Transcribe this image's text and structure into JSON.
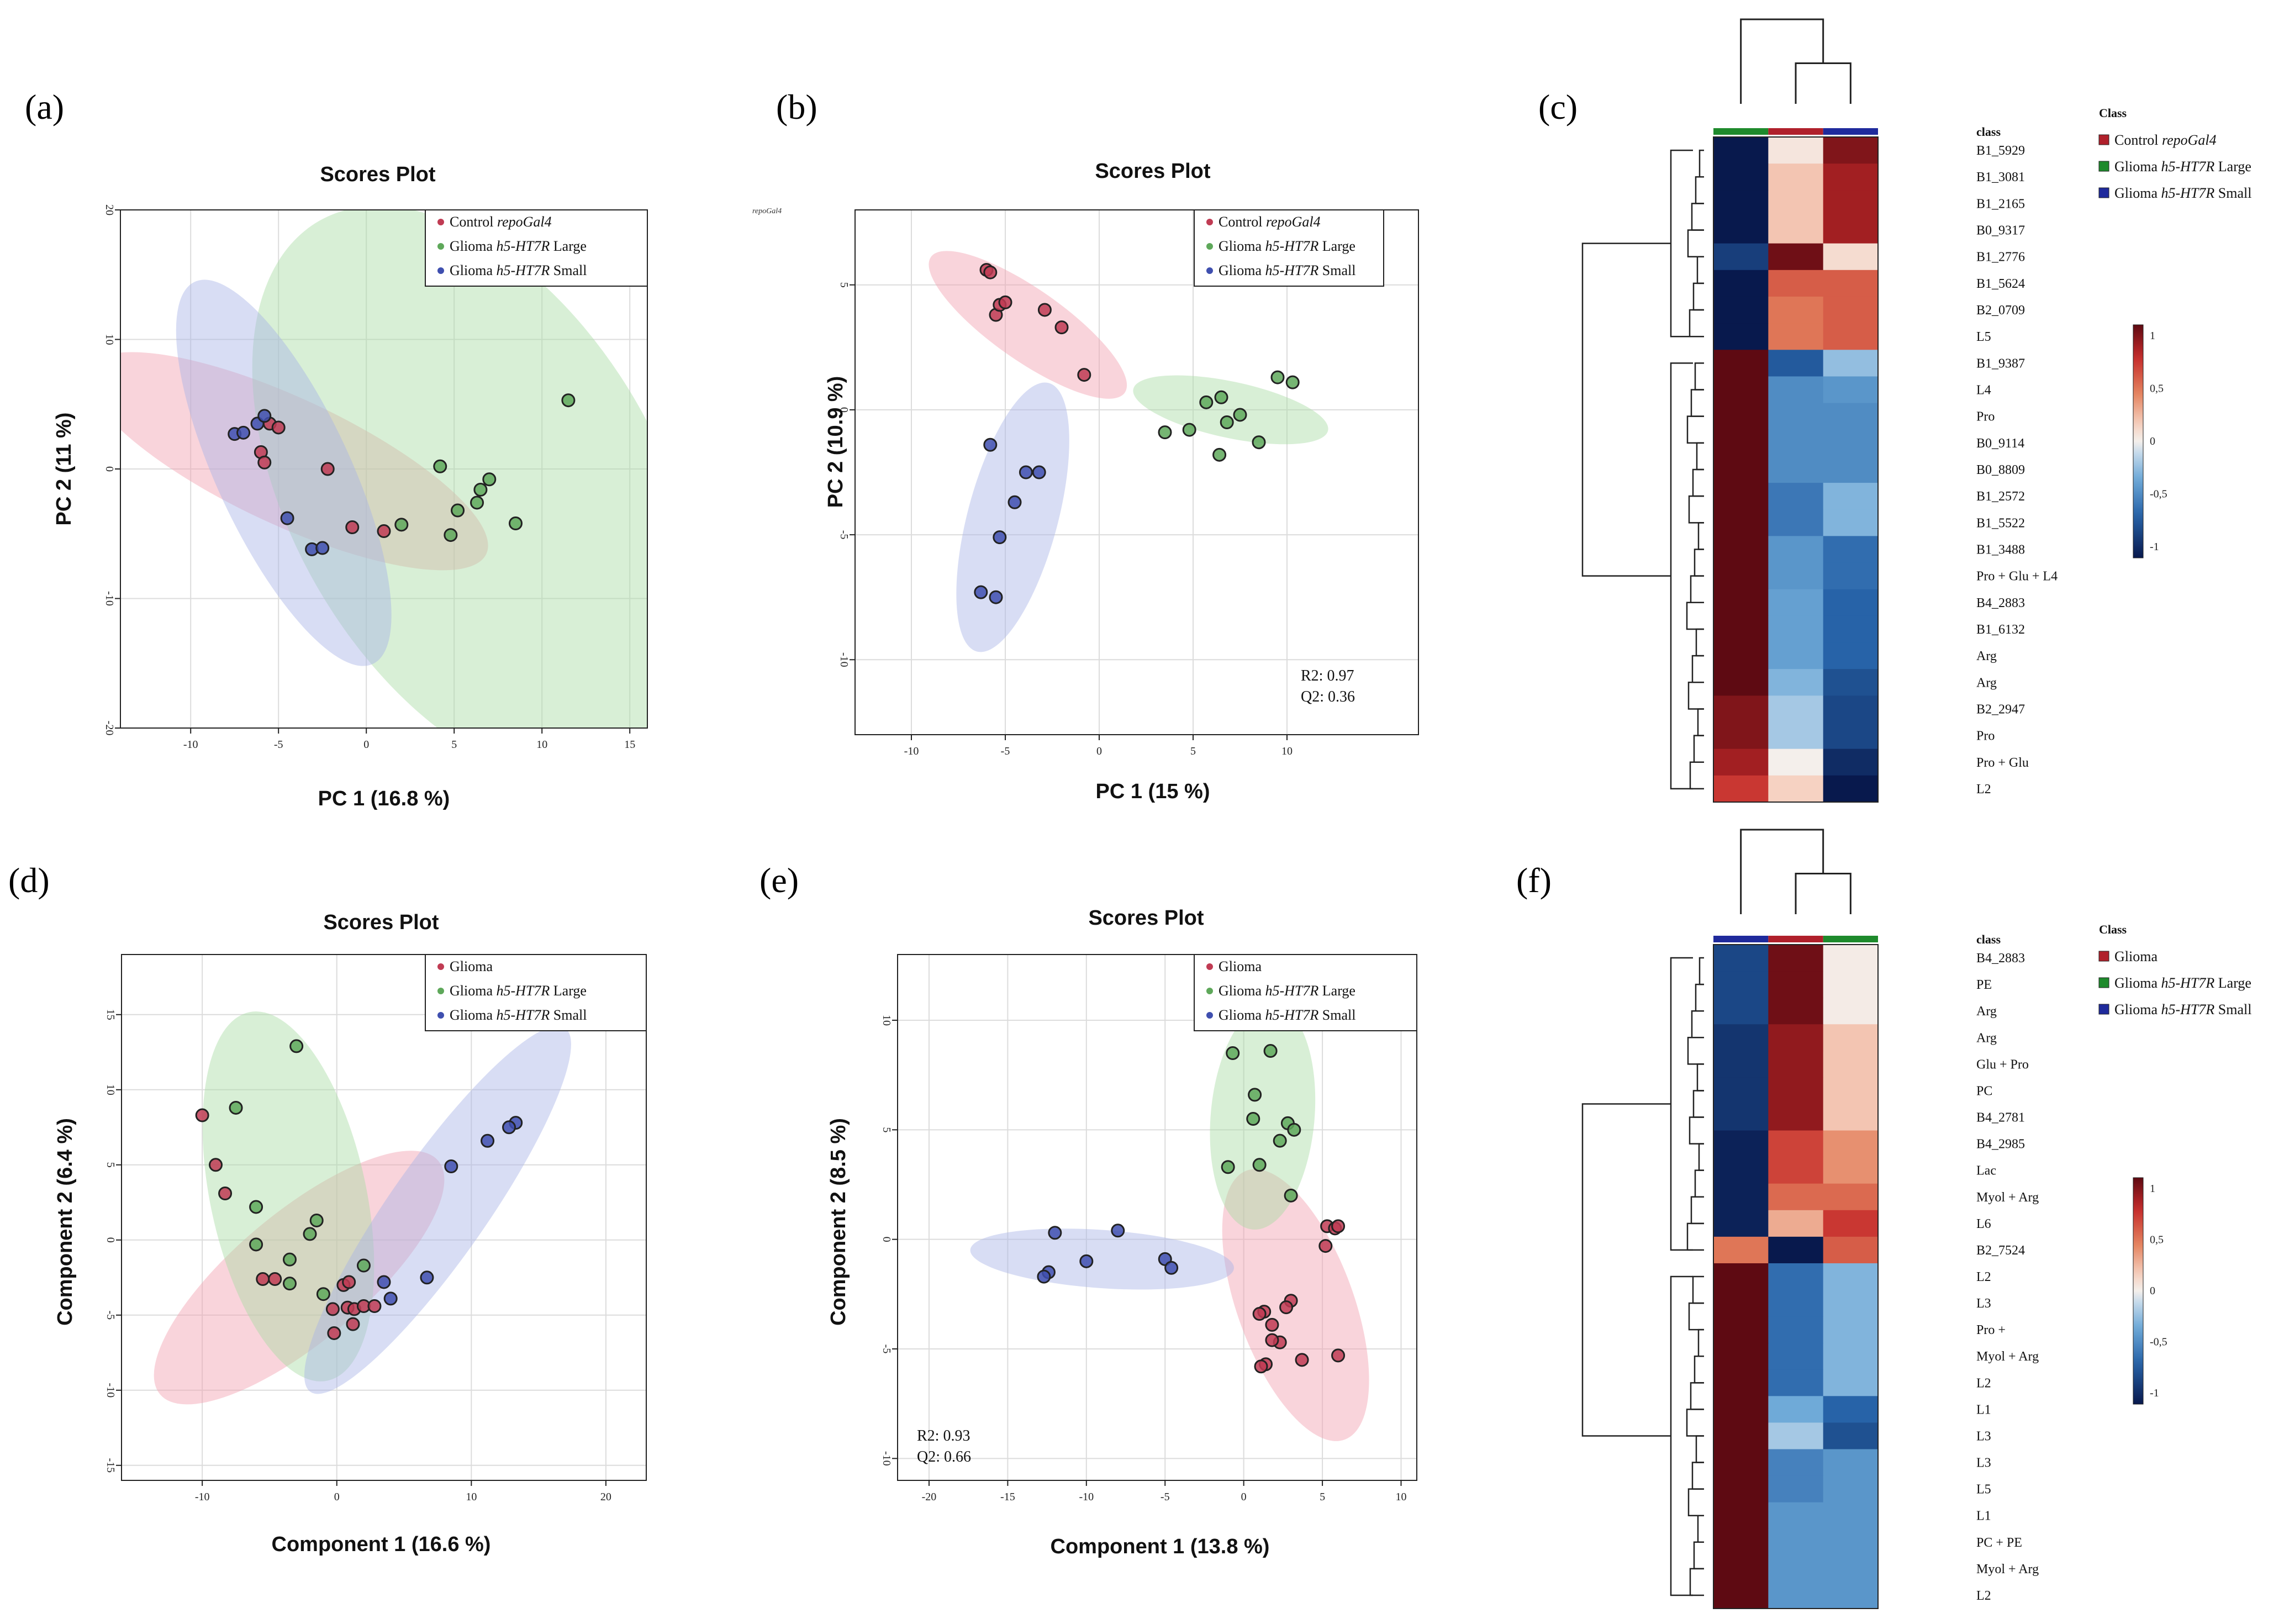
{
  "panel_labels": [
    "(a)",
    "(b)",
    "(c)",
    "(d)",
    "(e)",
    "(f)"
  ],
  "colors": {
    "control": "#C03B53",
    "large": "#5EA85A",
    "small": "#3F4FAF",
    "ellipse_red": "#F2A0B0",
    "ellipse_green": "#A9DCA5",
    "ellipse_blue": "#A9B4E6",
    "bar_red": "#B0202B",
    "bar_green": "#1E8A2C",
    "bar_blue": "#1F2A9C",
    "cmap_low": "#08194D",
    "cmap_mid": "#F7F4F0",
    "cmap_high": "#5E0A12"
  },
  "chart_data": [
    {
      "id": "a",
      "type": "scatter",
      "title": "Scores Plot",
      "xlabel": "PC 1 (16.8 %)",
      "ylabel": "PC 2 (11 %)",
      "xlim": [
        -14,
        16
      ],
      "ylim": [
        -20,
        20
      ],
      "xticks": [
        -10,
        -5,
        0,
        5,
        10,
        15
      ],
      "yticks": [
        -20,
        -10,
        0,
        10,
        20
      ],
      "ytick_labels": [
        "-20",
        "-10",
        "0",
        "10",
        "20"
      ],
      "legend": [
        "Control repoGal4",
        "Glioma h5-HT7R Large",
        "Glioma h5-HT7R Small"
      ],
      "series": [
        {
          "name": "Control repoGal4",
          "color_key": "control",
          "points": [
            [
              -5.5,
              3.5
            ],
            [
              -5,
              3.2
            ],
            [
              -6,
              1.3
            ],
            [
              -5.8,
              0.5
            ],
            [
              -2.2,
              0
            ],
            [
              -0.8,
              -4.5
            ],
            [
              1,
              -4.8
            ]
          ],
          "ellipse": {
            "cx": -4.5,
            "cy": 0.6,
            "rx": 12.5,
            "ry": 3.6,
            "angle_deg": -25
          }
        },
        {
          "name": "Glioma h5-HT7R Large",
          "color_key": "large",
          "points": [
            [
              11.5,
              5.3
            ],
            [
              4.2,
              0.2
            ],
            [
              7.0,
              -0.8
            ],
            [
              6.5,
              -1.6
            ],
            [
              6.3,
              -2.6
            ],
            [
              5.2,
              -3.2
            ],
            [
              8.5,
              -4.2
            ],
            [
              2.0,
              -4.3
            ],
            [
              4.8,
              -5.1
            ]
          ],
          "ellipse": {
            "cx": 6.3,
            "cy": -2.0,
            "rx": 10.5,
            "ry": 18,
            "angle_deg": 30
          }
        },
        {
          "name": "Glioma h5-HT7R Small",
          "color_key": "small",
          "points": [
            [
              -7.5,
              2.7
            ],
            [
              -7,
              2.8
            ],
            [
              -6.2,
              3.5
            ],
            [
              -5.8,
              4.1
            ],
            [
              -4.5,
              -3.8
            ],
            [
              -3.1,
              -6.2
            ],
            [
              -2.5,
              -6.1
            ]
          ],
          "ellipse": {
            "cx": -4.7,
            "cy": -0.3,
            "rx": 3.8,
            "ry": 12,
            "angle_deg": 25
          }
        }
      ]
    },
    {
      "id": "b",
      "type": "scatter",
      "title": "Scores Plot",
      "note": "repoGal4",
      "xlabel": "PC 1 (15 %)",
      "ylabel": "PC 2 (10.9 %)",
      "xlim": [
        -13,
        17
      ],
      "ylim": [
        -13,
        8
      ],
      "xticks": [
        -10,
        -5,
        0,
        5,
        10
      ],
      "yticks": [
        -10,
        -5,
        0,
        5
      ],
      "ytick_labels": [
        "-10",
        "-5",
        "0",
        "5"
      ],
      "legend": [
        "Control repoGal4",
        "Glioma h5-HT7R Large",
        "Glioma h5-HT7R Small"
      ],
      "stats": [
        "R2: 0.97",
        "Q2: 0.36"
      ],
      "series": [
        {
          "name": "Control repoGal4",
          "color_key": "control",
          "points": [
            [
              -6.0,
              5.6
            ],
            [
              -5.8,
              5.5
            ],
            [
              -5.5,
              3.8
            ],
            [
              -5.3,
              4.2
            ],
            [
              -5.0,
              4.3
            ],
            [
              -2.9,
              4.0
            ],
            [
              -2.0,
              3.3
            ],
            [
              -0.8,
              1.4
            ]
          ],
          "ellipse": {
            "cx": -3.8,
            "cy": 3.4,
            "rx": 6.3,
            "ry": 1.9,
            "angle_deg": -35
          }
        },
        {
          "name": "Glioma h5-HT7R Large",
          "color_key": "large",
          "points": [
            [
              3.5,
              -0.9
            ],
            [
              4.8,
              -0.8
            ],
            [
              5.7,
              0.3
            ],
            [
              6.5,
              0.5
            ],
            [
              6.8,
              -0.5
            ],
            [
              7.5,
              -0.2
            ],
            [
              8.5,
              -1.3
            ],
            [
              6.4,
              -1.8
            ],
            [
              9.5,
              1.3
            ],
            [
              10.3,
              1.1
            ]
          ],
          "ellipse": {
            "cx": 7.0,
            "cy": 0.0,
            "rx": 5.3,
            "ry": 1.5,
            "angle_deg": -12
          }
        },
        {
          "name": "Glioma h5-HT7R Small",
          "color_key": "small",
          "points": [
            [
              -5.8,
              -1.4
            ],
            [
              -3.9,
              -2.5
            ],
            [
              -3.2,
              -2.5
            ],
            [
              -4.5,
              -3.7
            ],
            [
              -5.3,
              -5.1
            ],
            [
              -6.3,
              -7.3
            ],
            [
              -5.5,
              -7.5
            ]
          ],
          "ellipse": {
            "cx": -4.6,
            "cy": -4.3,
            "rx": 7.4,
            "ry": 2.4,
            "angle_deg": 75
          }
        }
      ]
    },
    {
      "id": "c",
      "type": "heatmap",
      "class_header": "class",
      "legend_title": "Class",
      "legend": [
        "Control repoGal4",
        "Glioma h5-HT7R Large",
        "Glioma h5-HT7R Small"
      ],
      "columns": [
        "Glioma h5-HT7R Large",
        "Control repoGal4",
        "Glioma h5-HT7R Small"
      ],
      "column_color_keys": [
        "bar_green",
        "bar_red",
        "bar_blue"
      ],
      "rows": [
        "B1_5929",
        "B1_3081",
        "B1_2165",
        "B0_9317",
        "B1_2776",
        "B1_5624",
        "B2_0709",
        "L5",
        "B1_9387",
        "L4",
        "Pro",
        "B0_9114",
        "B0_8809",
        "B1_2572",
        "B1_5522",
        "B1_3488",
        "Pro + Glu + L4",
        "B4_2883",
        "B1_6132",
        "Arg",
        "Arg",
        "B2_2947",
        "Pro",
        "Pro + Glu",
        "L2"
      ],
      "values": [
        [
          -1.1,
          0.05,
          1.0
        ],
        [
          -1.1,
          0.2,
          0.9
        ],
        [
          -1.1,
          0.2,
          0.9
        ],
        [
          -1.1,
          0.2,
          0.9
        ],
        [
          -0.9,
          1.05,
          0.1
        ],
        [
          -1.1,
          0.6,
          0.6
        ],
        [
          -1.1,
          0.5,
          0.6
        ],
        [
          -1.1,
          0.5,
          0.6
        ],
        [
          1.1,
          -0.75,
          -0.25
        ],
        [
          1.1,
          -0.5,
          -0.45
        ],
        [
          1.1,
          -0.5,
          -0.5
        ],
        [
          1.1,
          -0.5,
          -0.5
        ],
        [
          1.1,
          -0.5,
          -0.5
        ],
        [
          1.1,
          -0.6,
          -0.3
        ],
        [
          1.1,
          -0.6,
          -0.3
        ],
        [
          1.1,
          -0.45,
          -0.65
        ],
        [
          1.1,
          -0.45,
          -0.65
        ],
        [
          1.1,
          -0.4,
          -0.7
        ],
        [
          1.1,
          -0.4,
          -0.7
        ],
        [
          1.1,
          -0.4,
          -0.7
        ],
        [
          1.1,
          -0.3,
          -0.8
        ],
        [
          1.0,
          -0.2,
          -0.85
        ],
        [
          1.0,
          -0.2,
          -0.85
        ],
        [
          0.9,
          0.0,
          -1.0
        ],
        [
          0.75,
          0.15,
          -1.1
        ]
      ],
      "colorbar": {
        "min": -1,
        "max": 1,
        "ticks": [
          "1",
          "0,5",
          "0",
          "-0,5",
          "-1"
        ]
      }
    },
    {
      "id": "d",
      "type": "scatter",
      "title": "Scores Plot",
      "xlabel": "Component 1 (16.6 %)",
      "ylabel": "Component 2 (6.4 %)",
      "xlim": [
        -16,
        23
      ],
      "ylim": [
        -16,
        19
      ],
      "xticks": [
        -10,
        0,
        10,
        20
      ],
      "yticks": [
        -15,
        -10,
        -5,
        0,
        5,
        10,
        15
      ],
      "ytick_labels": [
        "-15",
        "-10",
        "-5",
        "0",
        "5",
        "10",
        "15"
      ],
      "legend": [
        "Glioma",
        "Glioma h5-HT7R Large",
        "Glioma h5-HT7R Small"
      ],
      "series": [
        {
          "name": "Glioma",
          "color_key": "control",
          "points": [
            [
              -10,
              8.3
            ],
            [
              -9,
              5
            ],
            [
              -8.3,
              3.1
            ],
            [
              -5.5,
              -2.6
            ],
            [
              -4.6,
              -2.6
            ],
            [
              0.5,
              -3.0
            ],
            [
              0.9,
              -2.8
            ],
            [
              0.8,
              -4.5
            ],
            [
              1.3,
              -4.6
            ],
            [
              2.0,
              -4.4
            ],
            [
              2.8,
              -4.4
            ],
            [
              -0.3,
              -4.6
            ],
            [
              -0.2,
              -6.2
            ],
            [
              1.2,
              -5.6
            ]
          ],
          "ellipse": {
            "cx": -2.8,
            "cy": -2.5,
            "rx": 13.5,
            "ry": 4.8,
            "angle_deg": 40
          }
        },
        {
          "name": "Glioma h5-HT7R Large",
          "color_key": "large",
          "points": [
            [
              -3.0,
              12.9
            ],
            [
              -7.5,
              8.8
            ],
            [
              -6.0,
              2.2
            ],
            [
              -1.5,
              1.3
            ],
            [
              -2.0,
              0.4
            ],
            [
              -6.0,
              -0.3
            ],
            [
              -3.5,
              -1.3
            ],
            [
              2.0,
              -1.7
            ],
            [
              -3.5,
              -2.9
            ],
            [
              -1.0,
              -3.6
            ]
          ],
          "ellipse": {
            "cx": -3.6,
            "cy": 2.9,
            "rx": 5.8,
            "ry": 14.0,
            "angle_deg": 12
          }
        },
        {
          "name": "Glioma h5-HT7R Small",
          "color_key": "small",
          "points": [
            [
              13.3,
              7.8
            ],
            [
              12.8,
              7.5
            ],
            [
              11.2,
              6.6
            ],
            [
              8.5,
              4.9
            ],
            [
              6.7,
              -2.5
            ],
            [
              3.5,
              -2.8
            ],
            [
              4.0,
              -3.9
            ]
          ],
          "ellipse": {
            "cx": 7.5,
            "cy": 2.0,
            "rx": 16.5,
            "ry": 3.6,
            "angle_deg": 55
          }
        }
      ]
    },
    {
      "id": "e",
      "type": "scatter",
      "title": "Scores Plot",
      "xlabel": "Component 1 (13.8 %)",
      "ylabel": "Component 2 (8.5 %)",
      "xlim": [
        -22,
        11
      ],
      "ylim": [
        -11,
        13
      ],
      "xticks": [
        -20,
        -15,
        -10,
        -5,
        0,
        5,
        10
      ],
      "yticks": [
        -10,
        -5,
        0,
        5,
        10
      ],
      "ytick_labels": [
        "-10",
        "-5",
        "0",
        "5",
        "10"
      ],
      "legend": [
        "Glioma",
        "Glioma h5-HT7R Large",
        "Glioma h5-HT7R Small"
      ],
      "stats": [
        "R2: 0.93",
        "Q2: 0.66"
      ],
      "series": [
        {
          "name": "Glioma",
          "color_key": "control",
          "points": [
            [
              5.3,
              0.6
            ],
            [
              5.8,
              0.5
            ],
            [
              6.0,
              0.6
            ],
            [
              5.2,
              -0.3
            ],
            [
              3.0,
              -2.8
            ],
            [
              2.7,
              -3.1
            ],
            [
              1.3,
              -3.3
            ],
            [
              1.0,
              -3.4
            ],
            [
              1.8,
              -3.9
            ],
            [
              2.3,
              -4.7
            ],
            [
              1.8,
              -4.6
            ],
            [
              3.7,
              -5.5
            ],
            [
              6.0,
              -5.3
            ],
            [
              1.4,
              -5.7
            ],
            [
              1.1,
              -5.8
            ]
          ],
          "ellipse": {
            "cx": 3.3,
            "cy": -3.0,
            "rx": 9.1,
            "ry": 3.7,
            "angle_deg": -70
          }
        },
        {
          "name": "Glioma h5-HT7R Large",
          "color_key": "large",
          "points": [
            [
              -0.7,
              8.5
            ],
            [
              1.7,
              8.6
            ],
            [
              0.7,
              6.6
            ],
            [
              0.6,
              5.5
            ],
            [
              2.8,
              5.3
            ],
            [
              3.2,
              5.0
            ],
            [
              2.3,
              4.5
            ],
            [
              -1.0,
              3.3
            ],
            [
              1.0,
              3.4
            ],
            [
              3.0,
              2.0
            ]
          ],
          "ellipse": {
            "cx": 1.2,
            "cy": 5.6,
            "rx": 7.2,
            "ry": 3.3,
            "angle_deg": 85
          }
        },
        {
          "name": "Glioma h5-HT7R Small",
          "color_key": "small",
          "points": [
            [
              -12,
              0.3
            ],
            [
              -8,
              0.4
            ],
            [
              -10,
              -1.0
            ],
            [
              -5,
              -0.9
            ],
            [
              -4.6,
              -1.3
            ],
            [
              -12.4,
              -1.5
            ],
            [
              -12.7,
              -1.7
            ]
          ],
          "ellipse": {
            "cx": -9,
            "cy": -0.9,
            "rx": 8.4,
            "ry": 1.85,
            "angle_deg": -4
          }
        }
      ]
    },
    {
      "id": "f",
      "type": "heatmap",
      "class_header": "class",
      "legend_title": "Class",
      "legend": [
        "Glioma",
        "Glioma h5-HT7R Large",
        "Glioma h5-HT7R Small"
      ],
      "columns": [
        "Glioma h5-HT7R Small",
        "Glioma",
        "Glioma h5-HT7R Large"
      ],
      "column_color_keys": [
        "bar_blue",
        "bar_red",
        "bar_green"
      ],
      "rows": [
        "B4_2883",
        "PE",
        "Arg",
        "Arg",
        "Glu + Pro",
        "PC",
        "B4_2781",
        "B4_2985",
        "Lac",
        "Myol + Arg",
        "L6",
        "B2_7524",
        "L2",
        "L3",
        "Pro +",
        "Myol + Arg",
        "L2",
        "L1",
        "L3",
        "L3",
        "L5",
        "L1",
        "PC + PE",
        "Myol + Arg",
        "L2"
      ],
      "values": [
        [
          -0.85,
          1.05,
          0.02
        ],
        [
          -0.85,
          1.05,
          0.02
        ],
        [
          -0.85,
          1.05,
          0.02
        ],
        [
          -0.95,
          0.95,
          0.2
        ],
        [
          -0.95,
          0.95,
          0.2
        ],
        [
          -0.95,
          0.95,
          0.2
        ],
        [
          -0.95,
          0.95,
          0.2
        ],
        [
          -1.05,
          0.7,
          0.4
        ],
        [
          -1.05,
          0.7,
          0.4
        ],
        [
          -1.05,
          0.55,
          0.55
        ],
        [
          -1.05,
          0.3,
          0.75
        ],
        [
          0.5,
          -1.1,
          0.6
        ],
        [
          1.1,
          -0.65,
          -0.3
        ],
        [
          1.1,
          -0.65,
          -0.3
        ],
        [
          1.1,
          -0.65,
          -0.3
        ],
        [
          1.1,
          -0.65,
          -0.3
        ],
        [
          1.1,
          -0.65,
          -0.3
        ],
        [
          1.1,
          -0.35,
          -0.7
        ],
        [
          1.1,
          -0.2,
          -0.8
        ],
        [
          1.1,
          -0.55,
          -0.45
        ],
        [
          1.1,
          -0.55,
          -0.45
        ],
        [
          1.1,
          -0.45,
          -0.45
        ],
        [
          1.1,
          -0.45,
          -0.45
        ],
        [
          1.1,
          -0.45,
          -0.45
        ],
        [
          1.1,
          -0.45,
          -0.45
        ]
      ],
      "colorbar": {
        "min": -1,
        "max": 1,
        "ticks": [
          "1",
          "0,5",
          "0",
          "-0,5",
          "-1"
        ]
      }
    }
  ]
}
